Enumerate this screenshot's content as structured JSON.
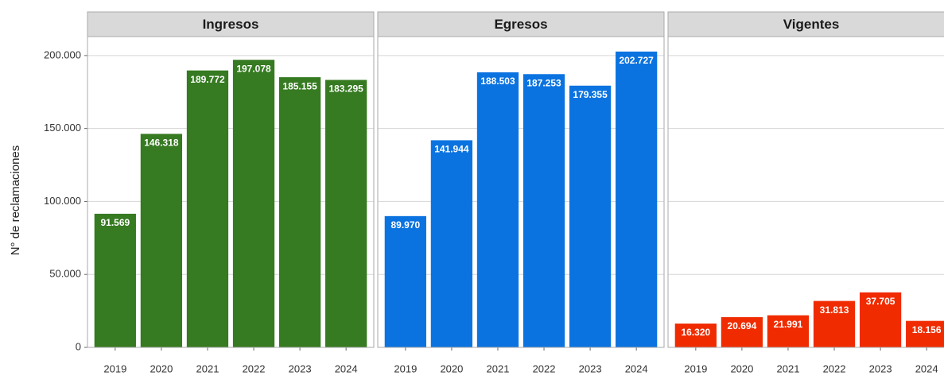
{
  "chart_data": {
    "type": "bar",
    "ylabel": "N° de reclamaciones",
    "categories": [
      "2019",
      "2020",
      "2021",
      "2022",
      "2023",
      "2024"
    ],
    "ylim": [
      0,
      213000
    ],
    "yticks": [
      {
        "value": 0,
        "label": "0"
      },
      {
        "value": 50000,
        "label": "50.000"
      },
      {
        "value": 100000,
        "label": "100.000"
      },
      {
        "value": 150000,
        "label": "150.000"
      },
      {
        "value": 200000,
        "label": "200.000"
      }
    ],
    "grid": true,
    "panels": [
      {
        "title": "Ingresos",
        "color": "#367a21",
        "values": [
          91569,
          146318,
          189772,
          197078,
          185155,
          183295
        ],
        "value_labels": [
          "91.569",
          "146.318",
          "189.772",
          "197.078",
          "185.155",
          "183.295"
        ]
      },
      {
        "title": "Egresos",
        "color": "#0b73e0",
        "values": [
          89970,
          141944,
          188503,
          187253,
          179355,
          202727
        ],
        "value_labels": [
          "89.970",
          "141.944",
          "188.503",
          "187.253",
          "179.355",
          "202.727"
        ]
      },
      {
        "title": "Vigentes",
        "color": "#f02b00",
        "values": [
          16320,
          20694,
          21991,
          31813,
          37705,
          18156
        ],
        "value_labels": [
          "16.320",
          "20.694",
          "21.991",
          "31.813",
          "37.705",
          "18.156"
        ]
      }
    ]
  }
}
